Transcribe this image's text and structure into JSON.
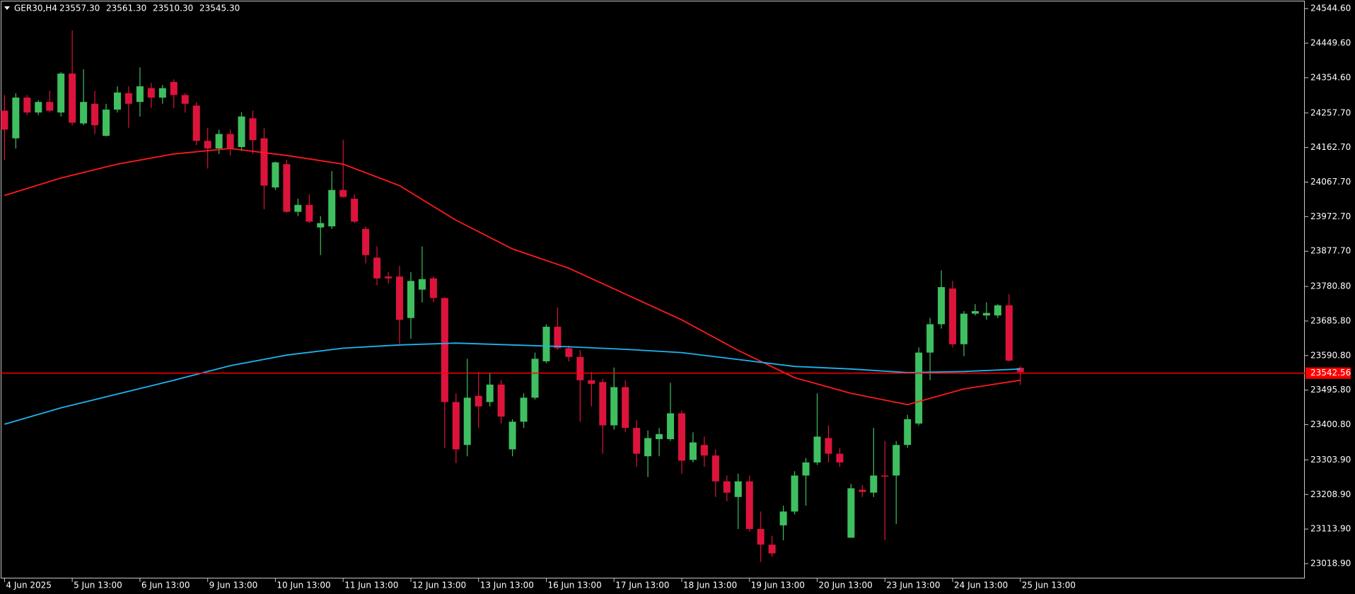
{
  "chart_data": {
    "type": "candlestick",
    "title": "GER30,H4",
    "last_bar": [
      {
        "value": 23557.3,
        "label": "23557.30"
      },
      {
        "value": 23561.3,
        "label": "23561.30"
      },
      {
        "value": 23510.3,
        "label": "23510.30"
      },
      {
        "value": 23545.3,
        "label": "23545.30"
      }
    ],
    "up_color": "#3fbf60",
    "down_color": "#dc143c",
    "background": "#000000",
    "xlim": [
      -0.4,
      115.2
    ],
    "ylim": [
      22982,
      24560.5
    ],
    "xticks": [
      {
        "value": 0,
        "label": "4 Jun 2025"
      },
      {
        "value": 6,
        "label": "5 Jun 13:00"
      },
      {
        "value": 12,
        "label": "6 Jun 13:00"
      },
      {
        "value": 18,
        "label": "9 Jun 13:00"
      },
      {
        "value": 24,
        "label": "10 Jun 13:00"
      },
      {
        "value": 30,
        "label": "11 Jun 13:00"
      },
      {
        "value": 36,
        "label": "12 Jun 13:00"
      },
      {
        "value": 42,
        "label": "13 Jun 13:00"
      },
      {
        "value": 48,
        "label": "16 Jun 13:00"
      },
      {
        "value": 54,
        "label": "17 Jun 13:00"
      },
      {
        "value": 60,
        "label": "18 Jun 13:00"
      },
      {
        "value": 66,
        "label": "19 Jun 13:00"
      },
      {
        "value": 72,
        "label": "20 Jun 13:00"
      },
      {
        "value": 78,
        "label": "23 Jun 13:00"
      },
      {
        "value": 84,
        "label": "24 Jun 13:00"
      },
      {
        "value": 90,
        "label": "25 Jun 13:00"
      }
    ],
    "yticks": [
      {
        "value": 24544.6,
        "label": "24544.60"
      },
      {
        "value": 24449.6,
        "label": "24449.60"
      },
      {
        "value": 24354.6,
        "label": "24354.60"
      },
      {
        "value": 24257.7,
        "label": "24257.70"
      },
      {
        "value": 24162.7,
        "label": "24162.70"
      },
      {
        "value": 24067.7,
        "label": "24067.70"
      },
      {
        "value": 23972.7,
        "label": "23972.70"
      },
      {
        "value": 23877.7,
        "label": "23877.70"
      },
      {
        "value": 23780.8,
        "label": "23780.80"
      },
      {
        "value": 23685.8,
        "label": "23685.80"
      },
      {
        "value": 23590.8,
        "label": "23590.80"
      },
      {
        "value": 23495.8,
        "label": "23495.80"
      },
      {
        "value": 23400.8,
        "label": "23400.80"
      },
      {
        "value": 23303.9,
        "label": "23303.90"
      },
      {
        "value": 23208.9,
        "label": "23208.90"
      },
      {
        "value": 23113.9,
        "label": "23113.90"
      },
      {
        "value": 23018.9,
        "label": "23018.90"
      }
    ],
    "price_line": {
      "value": 23542.56,
      "label": "23542.56",
      "color": "#ff0000"
    },
    "candles": {
      "open": [
        24264,
        24188,
        24300,
        24259,
        24288,
        24259,
        24366,
        24229,
        24283,
        24195,
        24267,
        24312,
        24288,
        24326,
        24300,
        24343,
        24307,
        24278,
        24181,
        24160,
        24200,
        24164,
        24243,
        24188,
        24053,
        24117,
        23986,
        24005,
        23943,
        23946,
        24046,
        24022,
        23939,
        23860,
        23808,
        23808,
        23694,
        23772,
        23803,
        23749,
        23463,
        23345,
        23480,
        23463,
        23511,
        23333,
        23409,
        23475,
        23575,
        23670,
        23611,
        23587,
        23523,
        23518,
        23399,
        23504,
        23392,
        23314,
        23361,
        23361,
        23432,
        23304,
        23345,
        23316,
        23245,
        23202,
        23245,
        23114,
        23071,
        23124,
        23162,
        23261,
        23297,
        23364,
        23321,
        23090,
        23222,
        23214,
        23261,
        23261,
        23345,
        23404,
        23599,
        23677,
        23775,
        23622,
        23706,
        23701,
        23701,
        23729,
        23557.3
      ],
      "high": [
        24307,
        24312,
        24307,
        24293,
        24319,
        24370,
        24485,
        24378,
        24319,
        24283,
        24331,
        24331,
        24383,
        24340,
        24335,
        24350,
        24312,
        24288,
        24217,
        24212,
        24212,
        24260,
        24264,
        24217,
        24124,
        24129,
        24022,
        24034,
        23974,
        24098,
        24184,
        24034,
        23946,
        23891,
        23820,
        23837,
        23820,
        23891,
        23808,
        23751,
        23487,
        23582,
        23546,
        23544,
        23523,
        23416,
        23487,
        23599,
        23677,
        23723,
        23618,
        23606,
        23546,
        23527,
        23558,
        23523,
        23413,
        23385,
        23392,
        23516,
        23440,
        23380,
        23368,
        23333,
        23261,
        23266,
        23261,
        23162,
        23095,
        23178,
        23273,
        23309,
        23487,
        23399,
        23337,
        23238,
        23235,
        23392,
        23356,
        23356,
        23428,
        23613,
        23694,
        23825,
        23796,
        23713,
        23732,
        23737,
        23732,
        23760,
        23561.3
      ],
      "low": [
        24129,
        24160,
        24252,
        24252,
        24259,
        24248,
        24224,
        24224,
        24200,
        24193,
        24259,
        24217,
        24248,
        24271,
        24283,
        24271,
        24259,
        24169,
        24105,
        24145,
        24141,
        24153,
        24145,
        23993,
        24046,
        23983,
        23974,
        23955,
        23867,
        23939,
        24025,
        23955,
        23844,
        23784,
        23789,
        23623,
        23637,
        23737,
        23737,
        23337,
        23295,
        23314,
        23392,
        23451,
        23404,
        23314,
        23392,
        23470,
        23570,
        23606,
        23575,
        23409,
        23451,
        23321,
        23387,
        23380,
        23285,
        23257,
        23314,
        23356,
        23266,
        23297,
        23285,
        23202,
        23190,
        23114,
        23107,
        23024,
        23038,
        23083,
        23154,
        23178,
        23290,
        23297,
        23285,
        23090,
        23202,
        23202,
        23083,
        23128,
        23337,
        23399,
        23523,
        23665,
        23613,
        23589,
        23701,
        23689,
        23694,
        23575,
        23510.3
      ],
      "close": [
        24212,
        24300,
        24259,
        24288,
        24264,
        24366,
        24231,
        24288,
        24224,
        24267,
        24314,
        24283,
        24331,
        24300,
        24326,
        24307,
        24283,
        24181,
        24160,
        24200,
        24160,
        24248,
        24183,
        24058,
        24122,
        23986,
        24005,
        23959,
        23955,
        24046,
        24027,
        23959,
        23867,
        23803,
        23803,
        23689,
        23796,
        23801,
        23749,
        23463,
        23333,
        23475,
        23451,
        23511,
        23423,
        23409,
        23475,
        23582,
        23670,
        23611,
        23587,
        23523,
        23513,
        23399,
        23504,
        23392,
        23321,
        23364,
        23375,
        23432,
        23302,
        23352,
        23316,
        23245,
        23214,
        23245,
        23114,
        23071,
        23047,
        23162,
        23261,
        23297,
        23368,
        23321,
        23297,
        23226,
        23216,
        23261,
        23259,
        23345,
        23416,
        23599,
        23677,
        23779,
        23622,
        23706,
        23713,
        23708,
        23729,
        23577,
        23545.3
      ]
    },
    "series": [
      {
        "color": "#ff1a1a",
        "x": [
          0,
          5,
          10,
          15,
          20,
          25,
          30,
          35,
          40,
          45,
          50,
          55,
          60,
          65,
          70,
          75,
          80,
          85,
          90
        ],
        "values": [
          24031,
          24079,
          24117,
          24145,
          24160,
          24141,
          24117,
          24058,
          23963,
          23884,
          23831,
          23760,
          23689,
          23605,
          23530,
          23487,
          23456,
          23499,
          23523
        ]
      },
      {
        "color": "#1eb4f0",
        "x": [
          0,
          5,
          10,
          15,
          20,
          25,
          30,
          35,
          40,
          45,
          50,
          55,
          60,
          65,
          70,
          75,
          80,
          85,
          90
        ],
        "values": [
          23402,
          23447,
          23485,
          23523,
          23563,
          23592,
          23611,
          23620,
          23625,
          23620,
          23615,
          23608,
          23599,
          23580,
          23561,
          23554,
          23544,
          23547,
          23554
        ]
      }
    ]
  }
}
